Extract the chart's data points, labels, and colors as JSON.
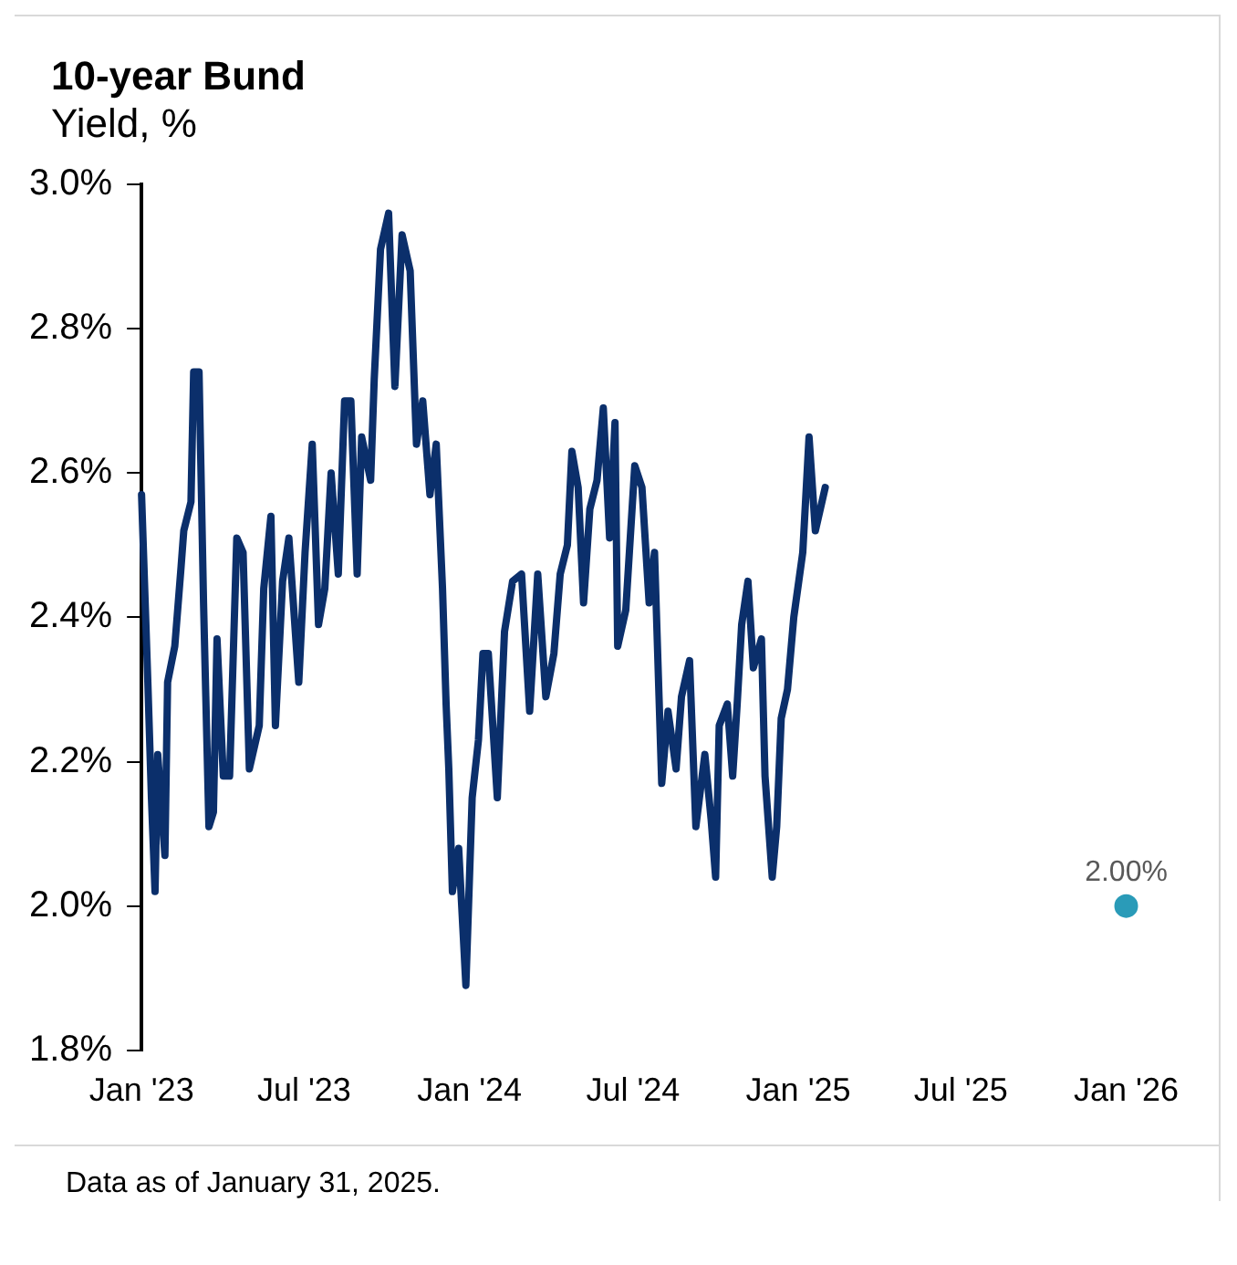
{
  "chart_data": {
    "type": "line",
    "title": "10-year Bund",
    "subtitle": "Yield, %",
    "xlim": [
      "2023-01-01",
      "2026-01-01"
    ],
    "xticks": [
      {
        "value": "2023-01-01",
        "label": "Jan '23"
      },
      {
        "value": "2023-07-01",
        "label": "Jul '23"
      },
      {
        "value": "2024-01-01",
        "label": "Jan '24"
      },
      {
        "value": "2024-07-01",
        "label": "Jul '24"
      },
      {
        "value": "2025-01-01",
        "label": "Jan '25"
      },
      {
        "value": "2025-07-01",
        "label": "Jul '25"
      },
      {
        "value": "2026-01-01",
        "label": "Jan '26"
      }
    ],
    "ylim": [
      1.8,
      3.0
    ],
    "yticks": [
      {
        "value": 1.8,
        "label": "1.8%"
      },
      {
        "value": 2.0,
        "label": "2.0%"
      },
      {
        "value": 2.2,
        "label": "2.2%"
      },
      {
        "value": 2.4,
        "label": "2.4%"
      },
      {
        "value": 2.6,
        "label": "2.6%"
      },
      {
        "value": 2.8,
        "label": "2.8%"
      },
      {
        "value": 3.0,
        "label": "3.0%"
      }
    ],
    "grid": false,
    "legend": false,
    "series": [
      {
        "type": "line",
        "color": "#0b2f6b",
        "marker": "none",
        "line_style": "solid",
        "x": [
          "2023-01-01",
          "2023-01-08",
          "2023-01-12",
          "2023-01-16",
          "2023-01-19",
          "2023-01-27",
          "2023-01-30",
          "2023-02-07",
          "2023-02-14",
          "2023-02-17",
          "2023-02-25",
          "2023-02-28",
          "2023-03-06",
          "2023-03-11",
          "2023-03-17",
          "2023-03-22",
          "2023-03-26",
          "2023-04-02",
          "2023-04-09",
          "2023-04-17",
          "2023-04-24",
          "2023-05-01",
          "2023-05-12",
          "2023-05-17",
          "2023-05-25",
          "2023-05-30",
          "2023-06-07",
          "2023-06-14",
          "2023-06-25",
          "2023-07-02",
          "2023-07-10",
          "2023-07-17",
          "2023-07-24",
          "2023-07-31",
          "2023-08-08",
          "2023-08-15",
          "2023-08-22",
          "2023-08-29",
          "2023-09-03",
          "2023-09-13",
          "2023-09-17",
          "2023-09-24",
          "2023-10-03",
          "2023-10-10",
          "2023-10-18",
          "2023-10-27",
          "2023-11-03",
          "2023-11-10",
          "2023-11-18",
          "2023-11-25",
          "2023-12-02",
          "2023-12-06",
          "2023-12-09",
          "2023-12-13",
          "2023-12-20",
          "2023-12-28",
          "2024-01-04",
          "2024-01-11",
          "2024-01-16",
          "2024-01-22",
          "2024-02-01",
          "2024-02-09",
          "2024-02-18",
          "2024-02-28",
          "2024-03-08",
          "2024-03-17",
          "2024-03-26",
          "2024-04-04",
          "2024-04-11",
          "2024-04-19",
          "2024-04-24",
          "2024-05-01",
          "2024-05-07",
          "2024-05-14",
          "2024-05-22",
          "2024-05-29",
          "2024-06-05",
          "2024-06-11",
          "2024-06-14",
          "2024-06-23",
          "2024-07-03",
          "2024-07-11",
          "2024-07-19",
          "2024-07-25",
          "2024-08-02",
          "2024-08-09",
          "2024-08-18",
          "2024-08-24",
          "2024-09-02",
          "2024-09-09",
          "2024-09-19",
          "2024-09-26",
          "2024-10-01",
          "2024-10-05",
          "2024-10-14",
          "2024-10-20",
          "2024-10-25",
          "2024-10-30",
          "2024-11-06",
          "2024-11-12",
          "2024-11-21",
          "2024-11-25",
          "2024-12-03",
          "2024-12-08",
          "2024-12-13",
          "2024-12-20",
          "2024-12-27",
          "2025-01-06",
          "2025-01-13",
          "2025-01-20",
          "2025-01-31"
        ],
        "values": [
          2.57,
          2.31,
          2.15,
          2.02,
          2.21,
          2.07,
          2.31,
          2.36,
          2.47,
          2.52,
          2.56,
          2.74,
          2.74,
          2.42,
          2.11,
          2.13,
          2.37,
          2.18,
          2.18,
          2.51,
          2.49,
          2.19,
          2.25,
          2.44,
          2.54,
          2.25,
          2.45,
          2.51,
          2.31,
          2.49,
          2.64,
          2.39,
          2.44,
          2.6,
          2.46,
          2.7,
          2.7,
          2.46,
          2.65,
          2.59,
          2.73,
          2.91,
          2.96,
          2.72,
          2.93,
          2.88,
          2.64,
          2.7,
          2.57,
          2.64,
          2.44,
          2.28,
          2.19,
          2.02,
          2.08,
          1.89,
          2.15,
          2.23,
          2.35,
          2.35,
          2.15,
          2.38,
          2.45,
          2.46,
          2.27,
          2.46,
          2.29,
          2.35,
          2.46,
          2.5,
          2.63,
          2.58,
          2.42,
          2.55,
          2.59,
          2.69,
          2.51,
          2.67,
          2.36,
          2.41,
          2.61,
          2.58,
          2.42,
          2.49,
          2.17,
          2.27,
          2.19,
          2.29,
          2.34,
          2.11,
          2.21,
          2.12,
          2.04,
          2.25,
          2.28,
          2.18,
          2.28,
          2.39,
          2.45,
          2.33,
          2.37,
          2.18,
          2.04,
          2.11,
          2.26,
          2.3,
          2.4,
          2.49,
          2.65,
          2.52,
          2.58
        ]
      },
      {
        "type": "scatter",
        "color": "#2a9bb8",
        "marker": "circle",
        "x": [
          "2026-01-01"
        ],
        "values": [
          2.0
        ],
        "value_labels": [
          "2.00%"
        ]
      }
    ],
    "annotations": [
      "Data as of January 31, 2025."
    ]
  }
}
